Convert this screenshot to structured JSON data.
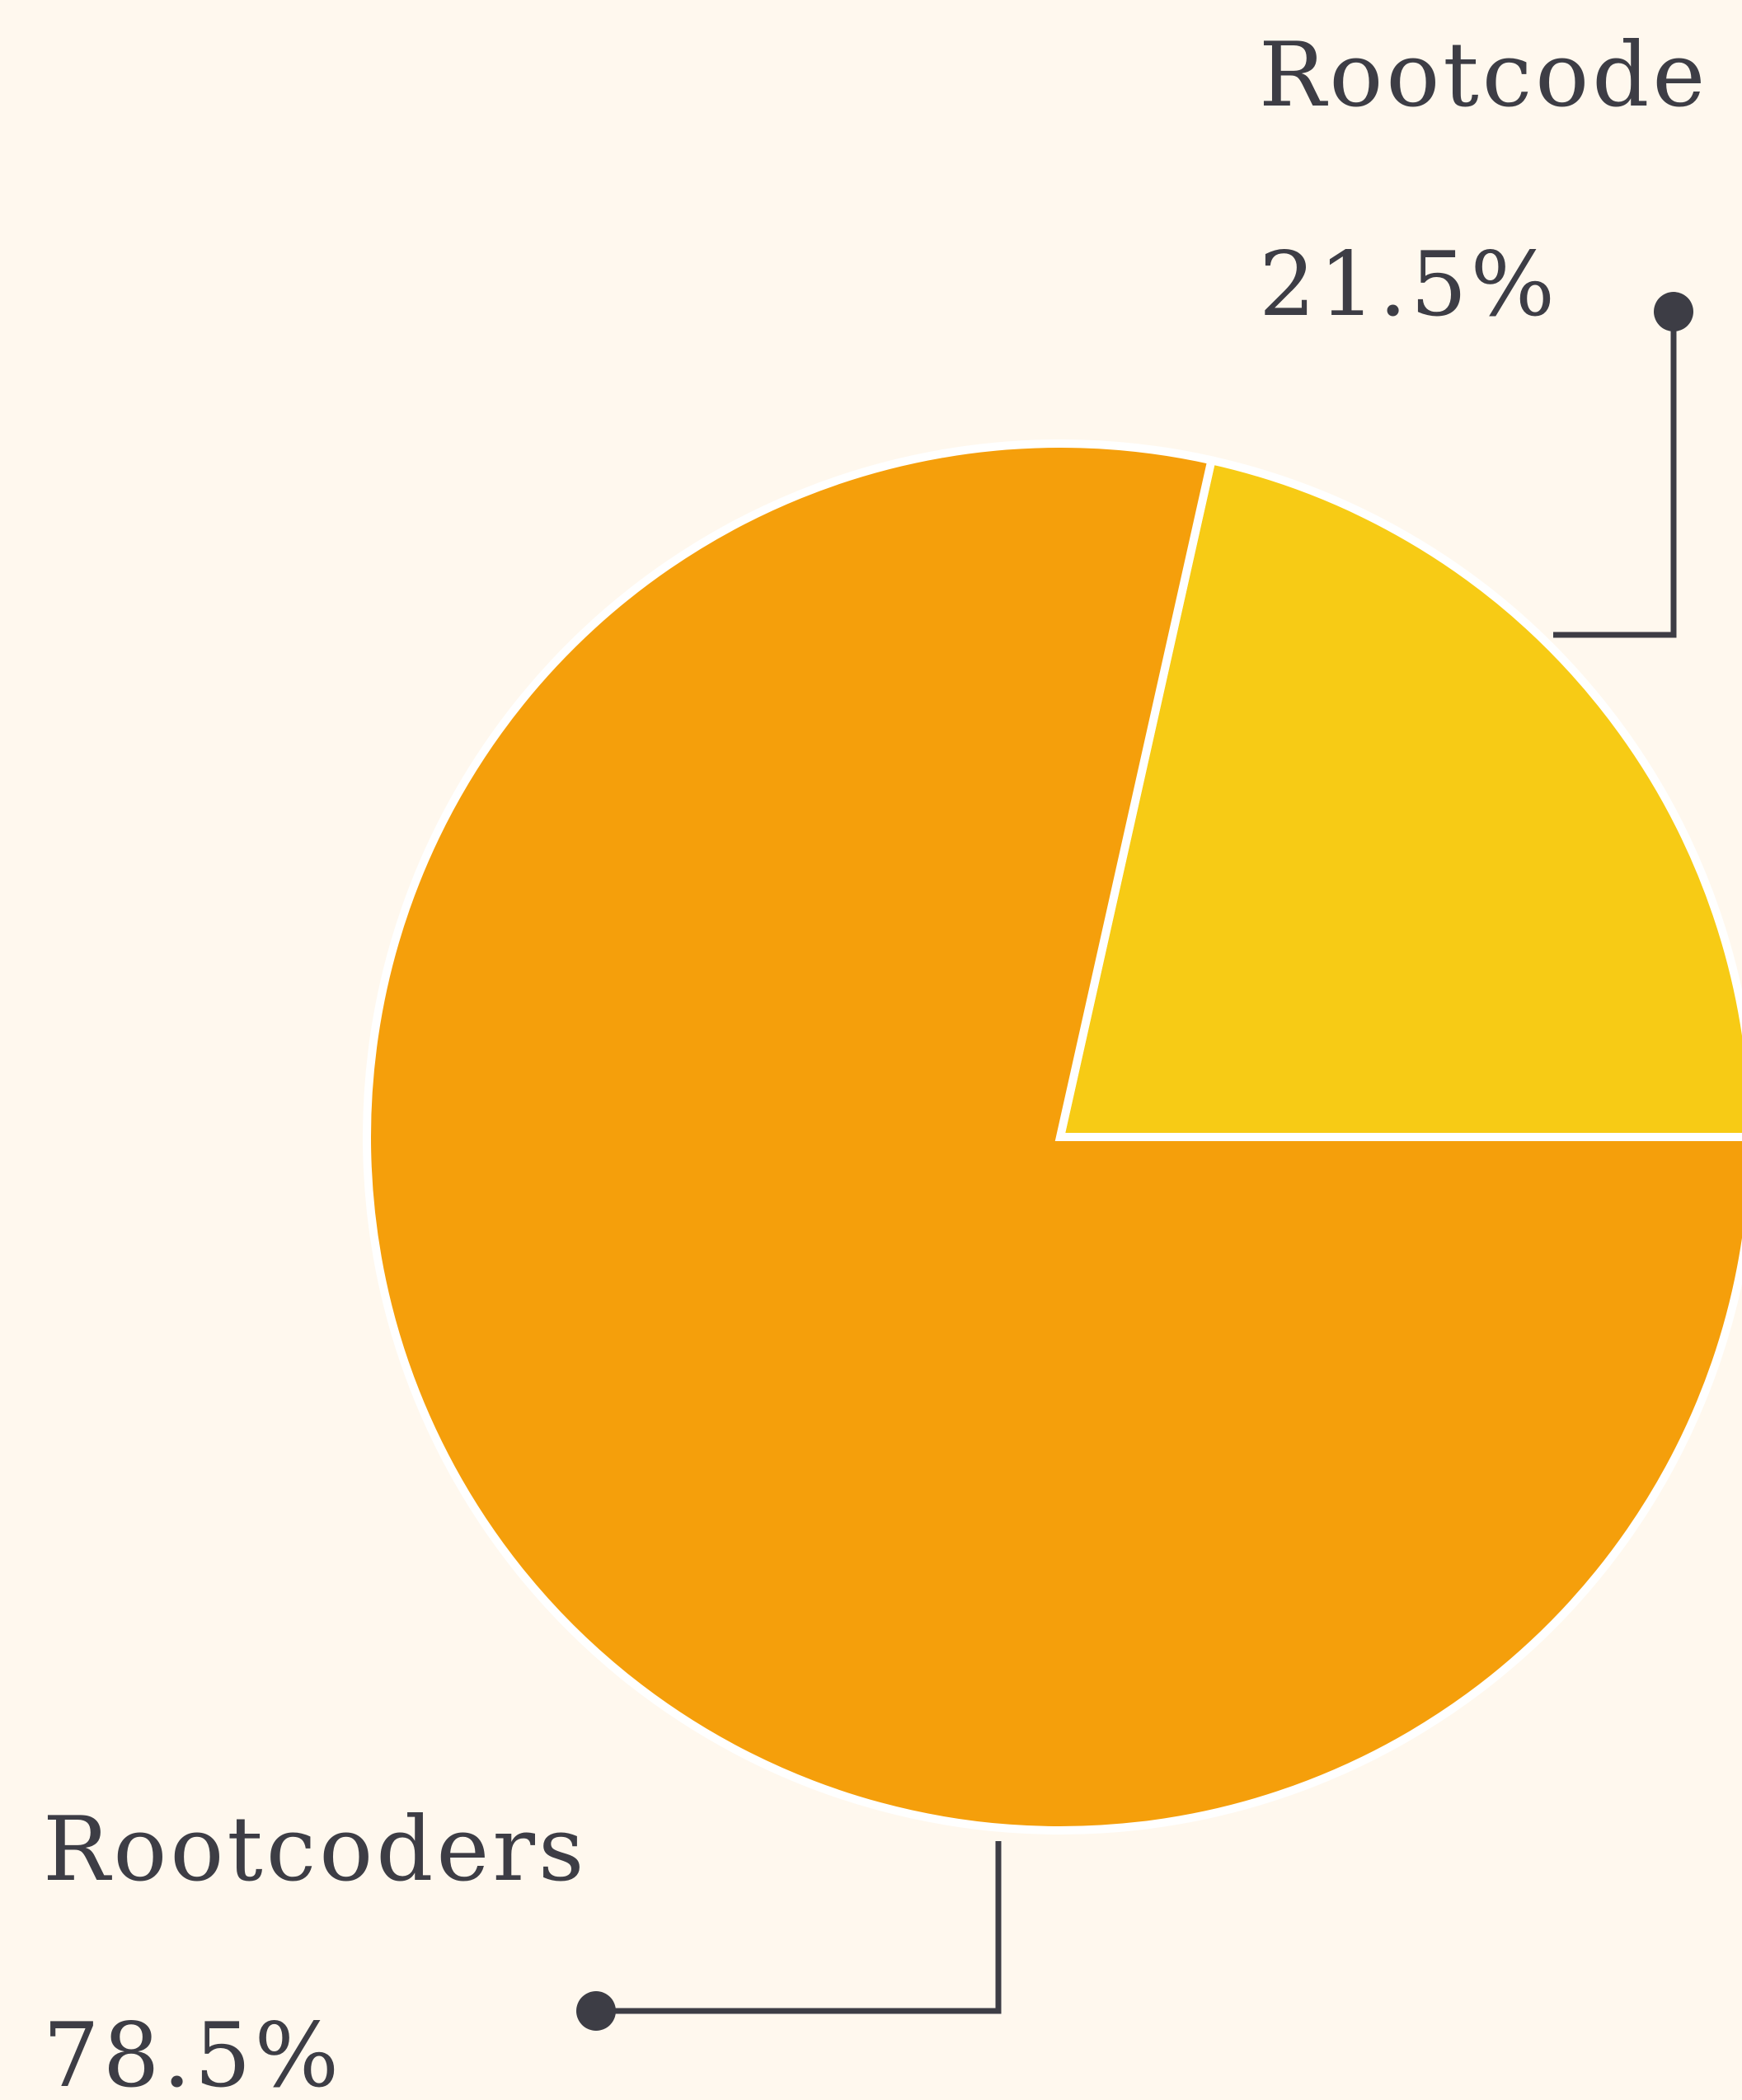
{
  "chart_data": {
    "type": "pie",
    "categories": [
      "Rootcode",
      "Rootcoders"
    ],
    "values": [
      21.5,
      78.5
    ],
    "value_labels": [
      "21.5%",
      "78.5%"
    ],
    "colors": [
      "#f7cb15",
      "#f59f0b"
    ]
  }
}
